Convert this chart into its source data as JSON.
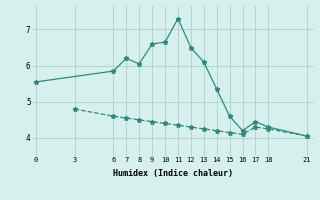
{
  "xlabel": "Humidex (Indice chaleur)",
  "line1_x": [
    0,
    6,
    7,
    8,
    9,
    10,
    11,
    12,
    13,
    14,
    15,
    16,
    17,
    18,
    21
  ],
  "line1_y": [
    5.55,
    5.85,
    6.2,
    6.05,
    6.6,
    6.65,
    7.3,
    6.5,
    6.1,
    5.35,
    4.6,
    4.2,
    4.45,
    4.3,
    4.05
  ],
  "line2_x": [
    3,
    6,
    7,
    8,
    9,
    10,
    11,
    12,
    13,
    14,
    15,
    16,
    17,
    18,
    21
  ],
  "line2_y": [
    4.8,
    4.6,
    4.55,
    4.5,
    4.45,
    4.4,
    4.35,
    4.3,
    4.25,
    4.2,
    4.15,
    4.1,
    4.3,
    4.25,
    4.05
  ],
  "xticks": [
    0,
    3,
    6,
    7,
    8,
    9,
    10,
    11,
    12,
    13,
    14,
    15,
    16,
    17,
    18,
    21
  ],
  "yticks": [
    4,
    5,
    6,
    7
  ],
  "ylim": [
    3.5,
    7.65
  ],
  "xlim": [
    -0.3,
    21.5
  ],
  "line_color": "#2e8b7a",
  "bg_color": "#d6f0ed",
  "grid_color": "#b0ceca",
  "marker": "*",
  "markersize": 3.5,
  "linewidth": 0.9,
  "tick_fontsize": 5.0,
  "xlabel_fontsize": 6.0
}
